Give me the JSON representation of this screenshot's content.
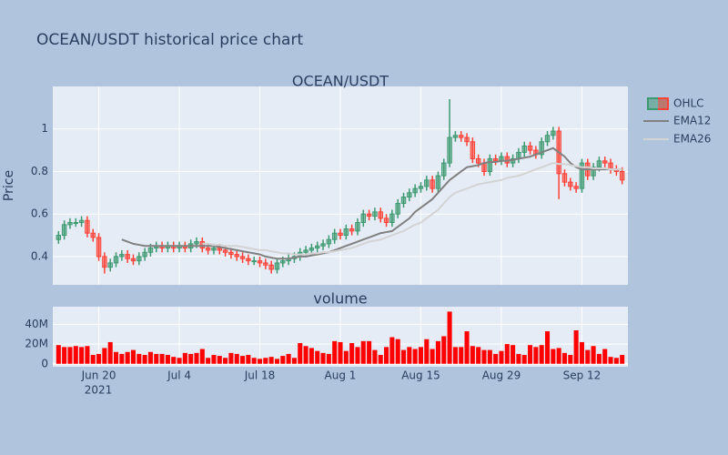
{
  "chart_data": {
    "type": "candlestick",
    "title": "OCEAN/USDT historical price chart",
    "subplot_title": "OCEAN/USDT",
    "y_label": "Price",
    "x": [
      "2021-06-13",
      "2021-06-14",
      "2021-06-15",
      "2021-06-16",
      "2021-06-17",
      "2021-06-18",
      "2021-06-19",
      "2021-06-20",
      "2021-06-21",
      "2021-06-22",
      "2021-06-23",
      "2021-06-24",
      "2021-06-25",
      "2021-06-26",
      "2021-06-27",
      "2021-06-28",
      "2021-06-29",
      "2021-06-30",
      "2021-07-01",
      "2021-07-02",
      "2021-07-03",
      "2021-07-04",
      "2021-07-05",
      "2021-07-06",
      "2021-07-07",
      "2021-07-08",
      "2021-07-09",
      "2021-07-10",
      "2021-07-11",
      "2021-07-12",
      "2021-07-13",
      "2021-07-14",
      "2021-07-15",
      "2021-07-16",
      "2021-07-17",
      "2021-07-18",
      "2021-07-19",
      "2021-07-20",
      "2021-07-21",
      "2021-07-22",
      "2021-07-23",
      "2021-07-24",
      "2021-07-25",
      "2021-07-26",
      "2021-07-27",
      "2021-07-28",
      "2021-07-29",
      "2021-07-30",
      "2021-07-31",
      "2021-08-01",
      "2021-08-02",
      "2021-08-03",
      "2021-08-04",
      "2021-08-05",
      "2021-08-06",
      "2021-08-07",
      "2021-08-08",
      "2021-08-09",
      "2021-08-10",
      "2021-08-11",
      "2021-08-12",
      "2021-08-13",
      "2021-08-14",
      "2021-08-15",
      "2021-08-16",
      "2021-08-17",
      "2021-08-18",
      "2021-08-19",
      "2021-08-20",
      "2021-08-21",
      "2021-08-22",
      "2021-08-23",
      "2021-08-24",
      "2021-08-25",
      "2021-08-26",
      "2021-08-27",
      "2021-08-28",
      "2021-08-29",
      "2021-08-30",
      "2021-08-31",
      "2021-09-01",
      "2021-09-02",
      "2021-09-03",
      "2021-09-04",
      "2021-09-05",
      "2021-09-06",
      "2021-09-07",
      "2021-09-08",
      "2021-09-09",
      "2021-09-10",
      "2021-09-11",
      "2021-09-12",
      "2021-09-13",
      "2021-09-14",
      "2021-09-15",
      "2021-09-16",
      "2021-09-17",
      "2021-09-18",
      "2021-09-19"
    ],
    "ohlc_name": "OHLC",
    "open": [
      0.48,
      0.5,
      0.55,
      0.56,
      0.56,
      0.57,
      0.51,
      0.49,
      0.4,
      0.35,
      0.37,
      0.4,
      0.41,
      0.39,
      0.38,
      0.4,
      0.42,
      0.44,
      0.45,
      0.44,
      0.45,
      0.44,
      0.45,
      0.44,
      0.46,
      0.47,
      0.44,
      0.43,
      0.44,
      0.43,
      0.42,
      0.41,
      0.4,
      0.39,
      0.38,
      0.38,
      0.37,
      0.36,
      0.34,
      0.37,
      0.38,
      0.39,
      0.4,
      0.42,
      0.43,
      0.44,
      0.45,
      0.46,
      0.48,
      0.51,
      0.5,
      0.53,
      0.52,
      0.56,
      0.6,
      0.59,
      0.61,
      0.58,
      0.56,
      0.6,
      0.65,
      0.68,
      0.7,
      0.72,
      0.73,
      0.76,
      0.72,
      0.78,
      0.84,
      0.96,
      0.97,
      0.96,
      0.94,
      0.86,
      0.84,
      0.8,
      0.86,
      0.85,
      0.87,
      0.84,
      0.86,
      0.89,
      0.92,
      0.9,
      0.88,
      0.94,
      0.97,
      0.99,
      0.79,
      0.75,
      0.73,
      0.72,
      0.84,
      0.78,
      0.82,
      0.85,
      0.84,
      0.81,
      0.8
    ],
    "high": [
      0.52,
      0.57,
      0.58,
      0.58,
      0.59,
      0.59,
      0.53,
      0.51,
      0.42,
      0.39,
      0.42,
      0.43,
      0.43,
      0.41,
      0.42,
      0.44,
      0.46,
      0.47,
      0.47,
      0.47,
      0.47,
      0.47,
      0.47,
      0.48,
      0.49,
      0.49,
      0.46,
      0.46,
      0.46,
      0.45,
      0.44,
      0.43,
      0.42,
      0.41,
      0.4,
      0.4,
      0.39,
      0.38,
      0.39,
      0.4,
      0.41,
      0.42,
      0.44,
      0.45,
      0.46,
      0.47,
      0.48,
      0.5,
      0.53,
      0.53,
      0.55,
      0.55,
      0.58,
      0.62,
      0.62,
      0.63,
      0.63,
      0.6,
      0.62,
      0.67,
      0.7,
      0.72,
      0.74,
      0.75,
      0.78,
      0.78,
      0.8,
      0.86,
      1.14,
      0.99,
      0.99,
      0.98,
      0.96,
      0.88,
      0.86,
      0.88,
      0.88,
      0.89,
      0.89,
      0.88,
      0.91,
      0.94,
      0.94,
      0.92,
      0.96,
      0.99,
      1.01,
      1.01,
      0.81,
      0.77,
      0.75,
      0.86,
      0.86,
      0.84,
      0.87,
      0.87,
      0.86,
      0.83,
      0.82
    ],
    "low": [
      0.46,
      0.48,
      0.53,
      0.54,
      0.54,
      0.49,
      0.47,
      0.38,
      0.32,
      0.33,
      0.35,
      0.38,
      0.37,
      0.36,
      0.36,
      0.38,
      0.4,
      0.42,
      0.42,
      0.42,
      0.42,
      0.42,
      0.42,
      0.42,
      0.44,
      0.42,
      0.41,
      0.41,
      0.41,
      0.4,
      0.39,
      0.38,
      0.37,
      0.36,
      0.36,
      0.35,
      0.34,
      0.32,
      0.32,
      0.35,
      0.36,
      0.37,
      0.38,
      0.4,
      0.41,
      0.42,
      0.43,
      0.44,
      0.46,
      0.48,
      0.48,
      0.5,
      0.5,
      0.54,
      0.57,
      0.57,
      0.56,
      0.54,
      0.54,
      0.58,
      0.63,
      0.66,
      0.68,
      0.7,
      0.71,
      0.7,
      0.7,
      0.76,
      0.82,
      0.94,
      0.94,
      0.92,
      0.84,
      0.82,
      0.78,
      0.78,
      0.83,
      0.83,
      0.82,
      0.82,
      0.84,
      0.87,
      0.88,
      0.86,
      0.86,
      0.92,
      0.95,
      0.67,
      0.73,
      0.71,
      0.7,
      0.7,
      0.76,
      0.76,
      0.8,
      0.82,
      0.79,
      0.78,
      0.74
    ],
    "close": [
      0.5,
      0.55,
      0.56,
      0.56,
      0.57,
      0.51,
      0.49,
      0.4,
      0.35,
      0.37,
      0.4,
      0.41,
      0.39,
      0.38,
      0.4,
      0.42,
      0.44,
      0.45,
      0.44,
      0.45,
      0.44,
      0.45,
      0.44,
      0.46,
      0.47,
      0.44,
      0.43,
      0.44,
      0.43,
      0.42,
      0.41,
      0.4,
      0.39,
      0.38,
      0.38,
      0.37,
      0.36,
      0.34,
      0.37,
      0.38,
      0.39,
      0.4,
      0.42,
      0.43,
      0.44,
      0.45,
      0.46,
      0.48,
      0.51,
      0.5,
      0.53,
      0.52,
      0.56,
      0.6,
      0.59,
      0.61,
      0.58,
      0.56,
      0.6,
      0.65,
      0.68,
      0.7,
      0.72,
      0.73,
      0.76,
      0.72,
      0.78,
      0.84,
      0.96,
      0.97,
      0.96,
      0.94,
      0.86,
      0.84,
      0.8,
      0.86,
      0.85,
      0.87,
      0.84,
      0.86,
      0.89,
      0.92,
      0.9,
      0.88,
      0.94,
      0.97,
      0.99,
      0.79,
      0.75,
      0.73,
      0.72,
      0.84,
      0.78,
      0.82,
      0.85,
      0.84,
      0.81,
      0.8,
      0.76
    ],
    "increasing_color": "#3d9970",
    "decreasing_color": "#ff4136",
    "ema": [
      {
        "name": "EMA12",
        "color": "#808080",
        "values": [
          null,
          null,
          null,
          null,
          null,
          null,
          null,
          null,
          null,
          null,
          null,
          0.48,
          0.47,
          0.46,
          0.455,
          0.45,
          0.45,
          0.45,
          0.45,
          0.45,
          0.45,
          0.45,
          0.45,
          0.45,
          0.45,
          0.45,
          0.45,
          0.45,
          0.445,
          0.44,
          0.435,
          0.43,
          0.425,
          0.42,
          0.415,
          0.41,
          0.4,
          0.395,
          0.39,
          0.39,
          0.39,
          0.395,
          0.4,
          0.4,
          0.405,
          0.41,
          0.415,
          0.42,
          0.43,
          0.44,
          0.45,
          0.46,
          0.47,
          0.48,
          0.49,
          0.5,
          0.51,
          0.515,
          0.52,
          0.54,
          0.56,
          0.58,
          0.61,
          0.63,
          0.65,
          0.67,
          0.7,
          0.73,
          0.76,
          0.78,
          0.8,
          0.82,
          0.825,
          0.83,
          0.84,
          0.845,
          0.845,
          0.85,
          0.85,
          0.855,
          0.86,
          0.865,
          0.87,
          0.88,
          0.89,
          0.9,
          0.91,
          0.89,
          0.87,
          0.84,
          0.82,
          0.81,
          0.81,
          0.81,
          0.81,
          0.81,
          0.81,
          0.81,
          0.81
        ]
      },
      {
        "name": "EMA26",
        "color": "#d3d3d3",
        "values": [
          null,
          null,
          null,
          null,
          null,
          null,
          null,
          null,
          null,
          null,
          null,
          null,
          null,
          null,
          null,
          null,
          null,
          null,
          null,
          null,
          null,
          null,
          null,
          null,
          null,
          0.46,
          0.46,
          0.455,
          0.455,
          0.45,
          0.45,
          0.45,
          0.445,
          0.44,
          0.435,
          0.43,
          0.43,
          0.425,
          0.42,
          0.415,
          0.415,
          0.41,
          0.41,
          0.41,
          0.415,
          0.415,
          0.42,
          0.42,
          0.425,
          0.43,
          0.435,
          0.44,
          0.45,
          0.46,
          0.47,
          0.475,
          0.48,
          0.49,
          0.5,
          0.51,
          0.52,
          0.535,
          0.55,
          0.56,
          0.58,
          0.6,
          0.62,
          0.65,
          0.68,
          0.7,
          0.71,
          0.72,
          0.73,
          0.74,
          0.745,
          0.75,
          0.755,
          0.76,
          0.77,
          0.775,
          0.78,
          0.79,
          0.8,
          0.81,
          0.82,
          0.83,
          0.84,
          0.835,
          0.835,
          0.83,
          0.825,
          0.82,
          0.82,
          0.815,
          0.815,
          0.815,
          0.81,
          0.81,
          0.81
        ]
      }
    ],
    "xlim": [
      "2021-06-12",
      "2021-09-20"
    ],
    "xticks": [
      {
        "value": "2021-06-20",
        "label": "Jun 20"
      },
      {
        "value": "2021-07-04",
        "label": "Jul 4"
      },
      {
        "value": "2021-07-18",
        "label": "Jul 18"
      },
      {
        "value": "2021-08-01",
        "label": "Aug 1"
      },
      {
        "value": "2021-08-15",
        "label": "Aug 15"
      },
      {
        "value": "2021-08-29",
        "label": "Aug 29"
      },
      {
        "value": "2021-09-12",
        "label": "Sep 12"
      }
    ],
    "x_year_label": "2021",
    "ylim": [
      0.267,
      1.2
    ],
    "yticks": [
      0.4,
      0.6,
      0.8,
      1
    ],
    "grid": true,
    "volume": {
      "title": "volume",
      "color": "#ff0000",
      "values": [
        19000000,
        17000000,
        17000000,
        18000000,
        17000000,
        18000000,
        9000000,
        10000000,
        16000000,
        22000000,
        12000000,
        10000000,
        12000000,
        14000000,
        10000000,
        9000000,
        12000000,
        10000000,
        10000000,
        9000000,
        7000000,
        6000000,
        11000000,
        10000000,
        11000000,
        15000000,
        6000000,
        9000000,
        8000000,
        6000000,
        11000000,
        10000000,
        8000000,
        9000000,
        6000000,
        5000000,
        6000000,
        7000000,
        5000000,
        8000000,
        10000000,
        6000000,
        21000000,
        18000000,
        16000000,
        13000000,
        11000000,
        10000000,
        23000000,
        22000000,
        13000000,
        21000000,
        17000000,
        23000000,
        23000000,
        14000000,
        9000000,
        17000000,
        27000000,
        25000000,
        14000000,
        17000000,
        15000000,
        17000000,
        25000000,
        15000000,
        23000000,
        28000000,
        53000000,
        17000000,
        17000000,
        33000000,
        18000000,
        17000000,
        14000000,
        14000000,
        10000000,
        13000000,
        20000000,
        19000000,
        10000000,
        9000000,
        19000000,
        17000000,
        19000000,
        33000000,
        15000000,
        16000000,
        11000000,
        9000000,
        34000000,
        22000000,
        14000000,
        18000000,
        10000000,
        15000000,
        7000000,
        6000000,
        9000000
      ],
      "ylim": [
        -3000000,
        58000000
      ],
      "yticks": [
        0,
        {
          "value": 20000000,
          "label": "20M"
        },
        {
          "value": 40000000,
          "label": "40M"
        }
      ]
    }
  }
}
